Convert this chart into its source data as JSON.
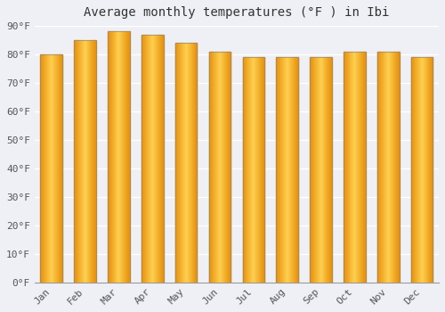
{
  "title": "Average monthly temperatures (°F ) in Ibi",
  "months": [
    "Jan",
    "Feb",
    "Mar",
    "Apr",
    "May",
    "Jun",
    "Jul",
    "Aug",
    "Sep",
    "Oct",
    "Nov",
    "Dec"
  ],
  "values": [
    80,
    85,
    88,
    87,
    84,
    81,
    79,
    79,
    79,
    81,
    81,
    79
  ],
  "bar_color_left": "#E8900A",
  "bar_color_center": "#FFD050",
  "bar_color_right": "#E8900A",
  "bar_edge_color": "#999999",
  "ylim": [
    0,
    90
  ],
  "yticks": [
    0,
    10,
    20,
    30,
    40,
    50,
    60,
    70,
    80,
    90
  ],
  "background_color": "#eef0f5",
  "plot_bg_color": "#eef0f5",
  "grid_color": "#ffffff",
  "title_fontsize": 10,
  "tick_fontsize": 8,
  "bar_width": 0.65
}
